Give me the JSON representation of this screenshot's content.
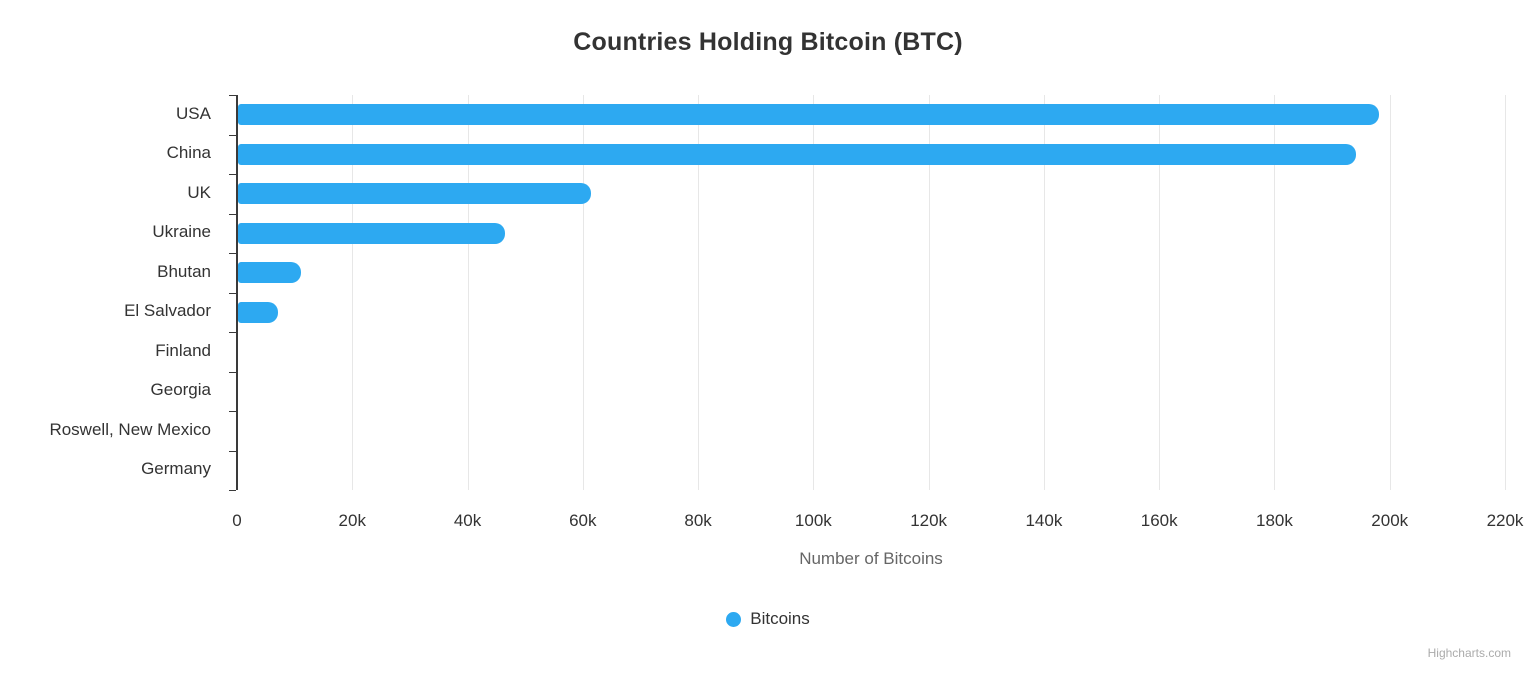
{
  "title": "Countries Holding Bitcoin (BTC)",
  "colors": {
    "bar": "#2da9f1",
    "grid": "#e7e7e7",
    "axis_line": "#3a3a3a",
    "text": "#333333",
    "axis_title_text": "#666666",
    "credits_text": "#ababab"
  },
  "legend": {
    "label": "Bitcoins"
  },
  "credits": "Highcharts.com",
  "chart_data": {
    "type": "bar",
    "orientation": "horizontal",
    "title": "Countries Holding Bitcoin (BTC)",
    "categories": [
      "USA",
      "China",
      "UK",
      "Ukraine",
      "Bhutan",
      "El Salvador",
      "Finland",
      "Georgia",
      "Roswell, New Mexico",
      "Germany"
    ],
    "series": [
      {
        "name": "Bitcoins",
        "color": "#2da9f1",
        "values": [
          198000,
          194000,
          61245,
          46351,
          11000,
          7000,
          0,
          0,
          0,
          0
        ]
      }
    ],
    "xlabel": "Number of Bitcoins",
    "ylabel": "",
    "xlim": [
      0,
      220000
    ],
    "x_tick_labels": [
      "0",
      "20k",
      "40k",
      "60k",
      "80k",
      "100k",
      "120k",
      "140k",
      "160k",
      "180k",
      "200k",
      "220k"
    ],
    "grid": "vertical-only",
    "legend_position": "bottom-center"
  }
}
